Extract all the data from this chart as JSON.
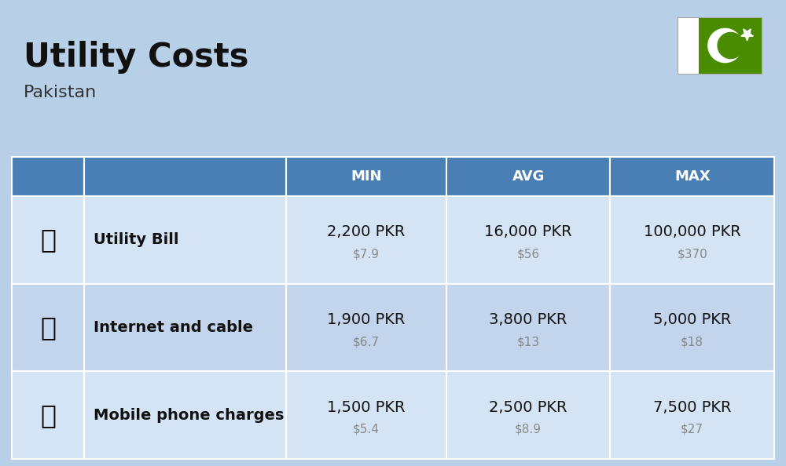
{
  "title": "Utility Costs",
  "subtitle": "Pakistan",
  "background_color": "#b8cfe8",
  "header_bg_color": "#4a7fb5",
  "header_text_color": "#ffffff",
  "row_bg_color_1": "#d4e4f4",
  "row_bg_color_2": "#c2d5ec",
  "rows": [
    {
      "label": "Utility Bill",
      "min_pkr": "2,200 PKR",
      "min_usd": "$7.9",
      "avg_pkr": "16,000 PKR",
      "avg_usd": "$56",
      "max_pkr": "100,000 PKR",
      "max_usd": "$370"
    },
    {
      "label": "Internet and cable",
      "min_pkr": "1,900 PKR",
      "min_usd": "$6.7",
      "avg_pkr": "3,800 PKR",
      "avg_usd": "$13",
      "max_pkr": "5,000 PKR",
      "max_usd": "$18"
    },
    {
      "label": "Mobile phone charges",
      "min_pkr": "1,500 PKR",
      "min_usd": "$5.4",
      "avg_pkr": "2,500 PKR",
      "avg_usd": "$8.9",
      "max_pkr": "7,500 PKR",
      "max_usd": "$27"
    }
  ],
  "flag_green": "#4a8c00",
  "flag_white": "#ffffff",
  "pkr_fontsize": 14,
  "usd_fontsize": 11,
  "label_fontsize": 14,
  "header_fontsize": 13,
  "title_fontsize": 30,
  "subtitle_fontsize": 16
}
